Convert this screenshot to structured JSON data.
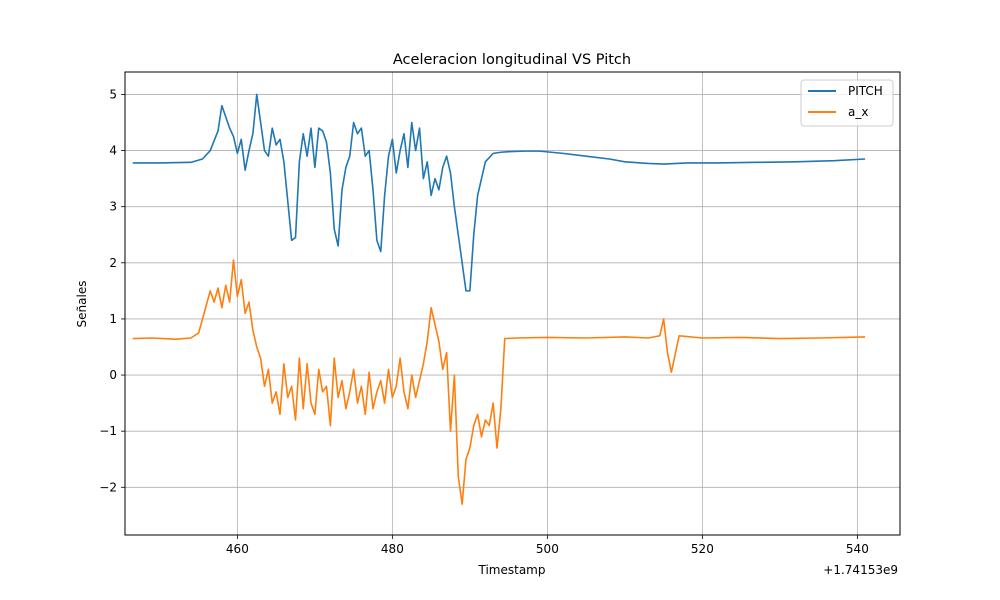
{
  "chart_data": {
    "type": "line",
    "title": "Aceleracion longitudinal VS Pitch",
    "xlabel": "Timestamp",
    "ylabel": "Señales",
    "x_offset_label": "+1.74153e9",
    "xlim": [
      445.5,
      545.5
    ],
    "ylim": [
      -2.85,
      5.4
    ],
    "x_ticks": [
      460,
      480,
      500,
      520,
      540
    ],
    "x_tick_labels": [
      "460",
      "480",
      "500",
      "520",
      "540"
    ],
    "y_ticks": [
      -2,
      -1,
      0,
      1,
      2,
      3,
      4,
      5
    ],
    "y_tick_labels": [
      "−2",
      "−1",
      "0",
      "1",
      "2",
      "3",
      "4",
      "5"
    ],
    "grid": true,
    "legend_position": "top-right",
    "colors": {
      "PITCH": "#1f77b4",
      "a_x": "#ff7f0e",
      "grid": "#b0b0b0"
    },
    "series": [
      {
        "name": "PITCH",
        "x": [
          446.5,
          450,
          454,
          455.5,
          456.5,
          457.5,
          458,
          458.5,
          459,
          459.5,
          460,
          460.5,
          461,
          461.5,
          462,
          462.5,
          463,
          463.5,
          464,
          464.5,
          465,
          465.5,
          466,
          466.5,
          467,
          467.5,
          468,
          468.5,
          469,
          469.5,
          470,
          470.5,
          471,
          471.5,
          472,
          472.5,
          473,
          473.5,
          474,
          474.5,
          475,
          475.5,
          476,
          476.5,
          477,
          477.5,
          478,
          478.5,
          479,
          479.5,
          480,
          480.5,
          481,
          481.5,
          482,
          482.5,
          483,
          483.5,
          484,
          484.5,
          485,
          485.5,
          486,
          486.5,
          487,
          487.5,
          488,
          488.5,
          489,
          489.5,
          490,
          490.5,
          491,
          492,
          493,
          494,
          495,
          497,
          499,
          502,
          505,
          508,
          510,
          513,
          515,
          518,
          522,
          527,
          532,
          537,
          541
        ],
        "values": [
          3.78,
          3.78,
          3.79,
          3.85,
          4.0,
          4.35,
          4.8,
          4.6,
          4.4,
          4.25,
          3.95,
          4.2,
          3.65,
          4.0,
          4.3,
          5.0,
          4.5,
          4.0,
          3.9,
          4.4,
          4.1,
          4.2,
          3.8,
          3.1,
          2.4,
          2.45,
          3.8,
          4.3,
          3.9,
          4.4,
          3.7,
          4.4,
          4.35,
          4.15,
          3.6,
          2.6,
          2.3,
          3.3,
          3.7,
          3.9,
          4.5,
          4.3,
          4.4,
          3.9,
          4.0,
          3.3,
          2.4,
          2.2,
          3.2,
          3.9,
          4.2,
          3.6,
          4.0,
          4.3,
          3.7,
          4.5,
          4.0,
          4.4,
          3.5,
          3.8,
          3.2,
          3.5,
          3.3,
          3.7,
          3.9,
          3.6,
          3.0,
          2.5,
          2.0,
          1.5,
          1.5,
          2.5,
          3.2,
          3.8,
          3.95,
          3.97,
          3.98,
          3.99,
          3.99,
          3.95,
          3.9,
          3.85,
          3.8,
          3.77,
          3.76,
          3.78,
          3.78,
          3.79,
          3.8,
          3.82,
          3.85
        ]
      },
      {
        "name": "a_x",
        "x": [
          446.5,
          449,
          452,
          454,
          455,
          456,
          456.5,
          457,
          457.5,
          458,
          458.5,
          459,
          459.5,
          460,
          460.5,
          461,
          461.5,
          462,
          462.5,
          463,
          463.5,
          464,
          464.5,
          465,
          465.5,
          466,
          466.5,
          467,
          467.5,
          468,
          468.5,
          469,
          469.5,
          470,
          470.5,
          471,
          471.5,
          472,
          472.5,
          473,
          473.5,
          474,
          474.5,
          475,
          475.5,
          476,
          476.5,
          477,
          477.5,
          478,
          478.5,
          479,
          479.5,
          480,
          480.5,
          481,
          481.5,
          482,
          482.5,
          483,
          483.5,
          484,
          484.5,
          485,
          485.5,
          486,
          486.5,
          487,
          487.5,
          488,
          488.5,
          489,
          489.5,
          490,
          490.5,
          491,
          491.5,
          492,
          492.5,
          493,
          493.5,
          494,
          494.5,
          496,
          500,
          505,
          510,
          513,
          514.5,
          515,
          515.5,
          516,
          517,
          520,
          525,
          530,
          535,
          541
        ],
        "values": [
          0.65,
          0.66,
          0.64,
          0.66,
          0.75,
          1.25,
          1.5,
          1.3,
          1.55,
          1.2,
          1.6,
          1.3,
          2.05,
          1.4,
          1.7,
          1.1,
          1.3,
          0.8,
          0.5,
          0.3,
          -0.2,
          0.1,
          -0.5,
          -0.3,
          -0.7,
          0.2,
          -0.4,
          -0.2,
          -0.8,
          0.3,
          -0.6,
          0.2,
          -0.5,
          -0.7,
          0.1,
          -0.3,
          -0.2,
          -0.9,
          0.3,
          -0.4,
          -0.1,
          -0.6,
          -0.3,
          0.1,
          -0.5,
          -0.2,
          -0.7,
          0.05,
          -0.6,
          -0.3,
          -0.1,
          -0.5,
          0.1,
          -0.4,
          -0.2,
          0.3,
          -0.3,
          -0.6,
          0.0,
          -0.4,
          -0.1,
          0.2,
          0.6,
          1.2,
          0.9,
          0.6,
          0.1,
          0.4,
          -1.0,
          0.0,
          -1.8,
          -2.3,
          -1.5,
          -1.3,
          -0.9,
          -0.7,
          -1.1,
          -0.8,
          -0.9,
          -0.5,
          -1.3,
          -0.6,
          0.65,
          0.66,
          0.67,
          0.66,
          0.68,
          0.66,
          0.7,
          1.0,
          0.4,
          0.05,
          0.7,
          0.66,
          0.67,
          0.65,
          0.66,
          0.68
        ]
      }
    ]
  }
}
